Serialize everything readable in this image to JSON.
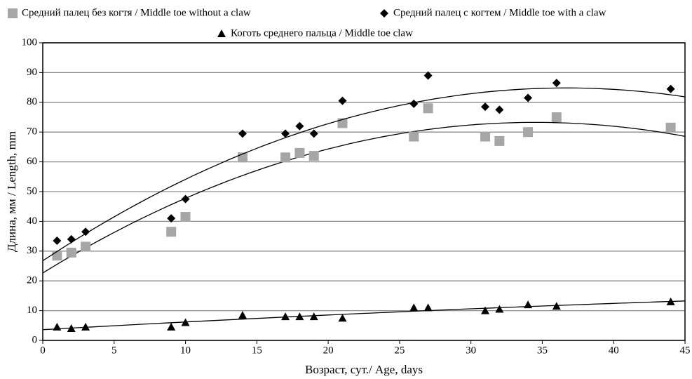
{
  "chart_data": {
    "type": "scatter",
    "xlabel": "Возраст, сут./ Age, days",
    "ylabel": "Длина, мм / Length, mm",
    "x": [
      1,
      2,
      3,
      9,
      10,
      14,
      17,
      18,
      19,
      21,
      26,
      27,
      31,
      32,
      34,
      36,
      44
    ],
    "series": [
      {
        "name": "Средний палец без когтя / Middle toe without a claw",
        "color": "#a6a6a6",
        "marker": "square",
        "values": [
          28.5,
          29.5,
          31.5,
          36.5,
          41.5,
          61.5,
          61.5,
          63,
          62,
          73,
          68.5,
          78,
          68.5,
          67,
          70,
          75,
          71.5
        ]
      },
      {
        "name": "Средний палец с когтем / Middle toe with a claw",
        "color": "#000000",
        "marker": "diamond",
        "values": [
          33.5,
          34,
          36.5,
          41,
          47.5,
          69.5,
          69.5,
          72,
          69.5,
          80.5,
          79.5,
          89,
          78.5,
          77.5,
          81.5,
          86.5,
          84.5
        ]
      },
      {
        "name": "Коготь среднего пальца /  Middle toe claw",
        "color": "#000000",
        "marker": "triangle",
        "values": [
          4.5,
          4,
          4.5,
          4.5,
          6,
          8.5,
          8,
          8,
          8,
          7.5,
          11,
          11,
          10,
          10.5,
          12,
          11.5,
          13
        ]
      }
    ],
    "trendline": "polynomial-2",
    "xlim": [
      0,
      45
    ],
    "xticks": [
      0,
      5,
      10,
      15,
      20,
      25,
      30,
      35,
      40,
      45
    ],
    "ylim": [
      0,
      100
    ],
    "yticks": [
      0,
      10,
      20,
      30,
      40,
      50,
      60,
      70,
      80,
      90,
      100
    ],
    "grid": true
  }
}
